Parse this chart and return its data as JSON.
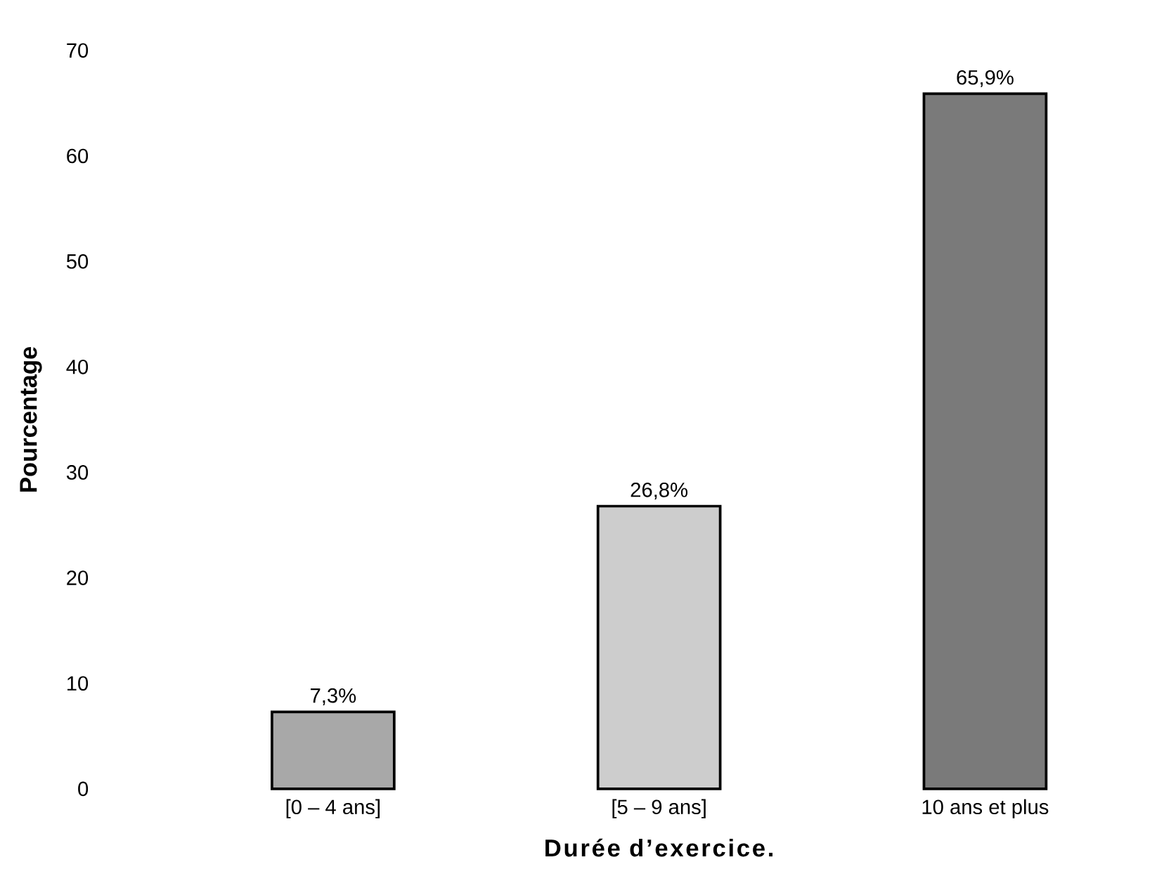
{
  "chart_data": {
    "type": "bar",
    "xlabel": "Durée d’exercice.",
    "ylabel": "Pourcentage",
    "categories": [
      "[0 – 4 ans]",
      "[5 – 9 ans]",
      "10 ans et plus"
    ],
    "values": [
      7.3,
      26.8,
      65.9
    ],
    "colors": [
      "#a8a8a8",
      "#cdcdcd",
      "#7a7a7a"
    ],
    "value_labels": [
      "7,3%",
      "26,8%",
      "65,9%"
    ],
    "ylim": [
      0,
      70
    ],
    "yticks": [
      0,
      10,
      20,
      30,
      40,
      50,
      60,
      70
    ]
  }
}
